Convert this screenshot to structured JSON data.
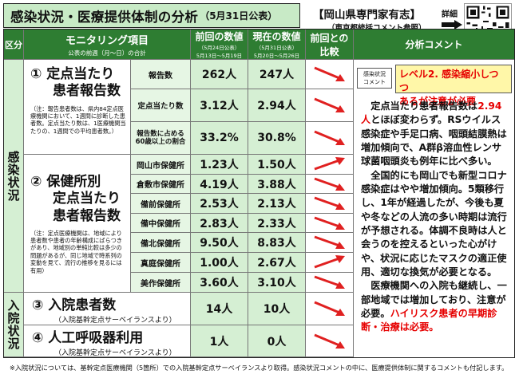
{
  "header": {
    "title": "感染状況・医療提供体制の分析",
    "date": "（5月31日公表）",
    "expert_title": "【岡山県専門家有志】",
    "expert_sub": "（東京都統括コメント参照）",
    "detail_label": "詳細"
  },
  "table_header": {
    "col_section": "区分",
    "col_item": "モニタリング項目",
    "col_item_sub": "公表の前週（月～日）の合計",
    "col_prev": "前回の数値",
    "col_prev_sub1": "（5月24日公表）",
    "col_prev_sub2": "5月13日～5月19日",
    "col_curr": "現在の数値",
    "col_curr_sub1": "（5月31日公表）",
    "col_curr_sub2": "5月20日～5月26日",
    "col_cmp1": "前回との",
    "col_cmp2": "比較",
    "col_comment": "分析コメント"
  },
  "sections": {
    "infection": "感染状況",
    "hospital": "入院状況"
  },
  "item1": {
    "title_line1": "① 定点当たり",
    "title_line2": "患者報告数",
    "note": "（注：報告患者数は、県内84定点医療機関において、1週間に診断した患者数。定点当たり数は、1医療機関当たりの、1週間での平均患者数。）",
    "rows": [
      {
        "label": "報告数",
        "prev": "262人",
        "curr": "247人"
      },
      {
        "label": "定点当たり数",
        "prev": "3.12人",
        "curr": "2.94人"
      },
      {
        "label": "報告数に占める60歳以上の割合",
        "prev": "33.2%",
        "curr": "30.8%"
      }
    ]
  },
  "item2": {
    "title_line1": "② 保健所別",
    "title_line2": "定点当たり",
    "title_line3": "患者報告数",
    "note": "（注：定点医療機関は、地域により患者数や患者の年齢構成にばらつきがあり、地域別の単純比較は多少の問題があるが、同じ地域で時系列の変動を見て、流行の推移を見るには有用）",
    "rows": [
      {
        "label": "岡山市保健所",
        "prev": "1.23人",
        "curr": "1.50人"
      },
      {
        "label": "倉敷市保健所",
        "prev": "4.19人",
        "curr": "3.88人"
      },
      {
        "label": "備前保健所",
        "prev": "2.53人",
        "curr": "2.13人"
      },
      {
        "label": "備中保健所",
        "prev": "2.83人",
        "curr": "2.33人"
      },
      {
        "label": "備北保健所",
        "prev": "9.50人",
        "curr": "8.83人"
      },
      {
        "label": "真庭保健所",
        "prev": "1.00人",
        "curr": "2.67人"
      },
      {
        "label": "美作保健所",
        "prev": "3.60人",
        "curr": "3.10人"
      }
    ]
  },
  "item3": {
    "title": "③ 入院患者数",
    "sub": "（入院基幹定点サーベイランスより）",
    "prev": "14人",
    "curr": "10人"
  },
  "item4": {
    "title": "④ 人工呼吸器利用",
    "sub": "（入院基幹定点サーベイランスより）",
    "prev": "1人",
    "curr": "0人"
  },
  "comment": {
    "badge_line1": "感染状況",
    "badge_line2": "コメント",
    "level_line1": "レベル2. 感染縮小しつつ",
    "level_line2": "あるが注意が必要",
    "p1_a": "定点当たり患者報告数は",
    "p1_red": "2.94人",
    "p1_b": "とほぼ変わらず。RSウイルス感染症や手足口病、咽頭結膜熱は増加傾向で、A群β溶血性レンサ球菌咽頭炎も例年に比べ多い。",
    "p2": "全国的にも岡山でも新型コロナ感染症はやや増加傾向。5類移行し、1年が経過したが、今後も夏や冬などの人流の多い時期は流行が予想される。体調不良時は人と会うのを控えるといった心がけや、状況に応じたマスクの適正使用、適切な換気が必要となる。",
    "p3_a": "医療機関への入院も継続し、一部地域では増加しており、注意が必要。",
    "p3_red": "ハイリスク患者の早期診断・治療は必要。"
  },
  "footer": "※入院状況については、基幹定点医療機関（5箇所）での入院基幹定点サーベイランスより取得。感染状況コメントの中に、医療提供体制に関するコメントも付記します。",
  "colors": {
    "header_green": "#2e7d32",
    "light_green": "#d5efd3",
    "title_bg": "#c8eac6",
    "arrow_red": "#e02020",
    "level_yellow": "#fff7a8",
    "emphasis_red": "#e60000"
  },
  "icons": {
    "detail_arrow": "right-arrow-icon",
    "trend": "down-right-arrow-icon",
    "qr": "qr-code-icon"
  }
}
